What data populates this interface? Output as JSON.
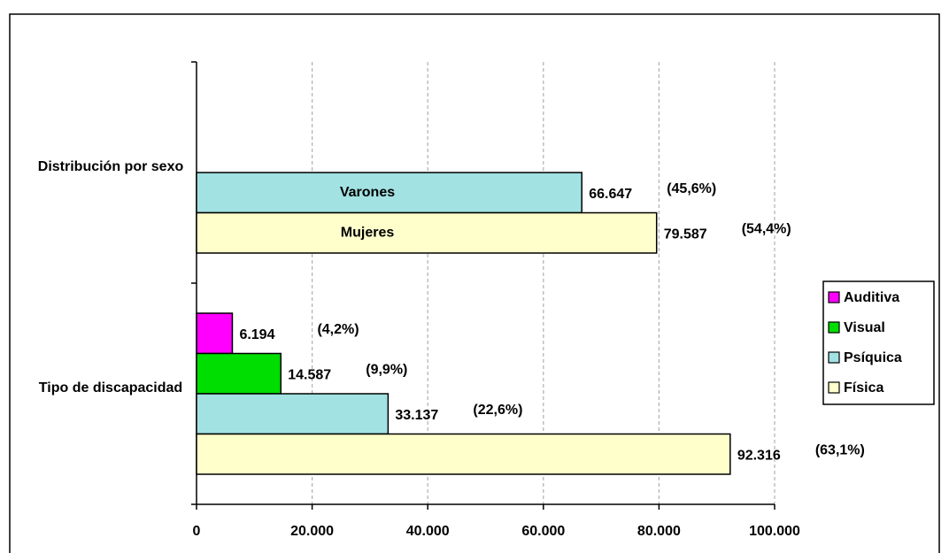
{
  "chart_data": {
    "type": "hbar",
    "categories": [
      "Distribución por sexo",
      "Tipo de discapacidad"
    ],
    "series": [
      {
        "name": "Auditiva",
        "color": "#ff00ff",
        "values": [
          null,
          6194
        ],
        "value_labels": [
          null,
          "6.194"
        ],
        "shares": [
          null,
          4.2
        ],
        "share_labels": [
          null,
          "(4,2%)"
        ],
        "inner_labels": [
          null,
          null
        ]
      },
      {
        "name": "Visual",
        "color": "#00dd00",
        "values": [
          null,
          14587
        ],
        "value_labels": [
          null,
          "14.587"
        ],
        "shares": [
          null,
          9.9
        ],
        "share_labels": [
          null,
          "(9,9%)"
        ],
        "inner_labels": [
          null,
          null
        ]
      },
      {
        "name": "Psíquica",
        "color": "#a3e2e2",
        "values": [
          66647,
          33137
        ],
        "value_labels": [
          "66.647",
          "33.137"
        ],
        "shares": [
          45.6,
          22.6
        ],
        "share_labels": [
          "(45,6%)",
          "(22,6%)"
        ],
        "inner_labels": [
          "Varones",
          null
        ]
      },
      {
        "name": "Física",
        "color": "#ffffcc",
        "values": [
          79587,
          92316
        ],
        "value_labels": [
          "79.587",
          "92.316"
        ],
        "shares": [
          54.4,
          63.1
        ],
        "share_labels": [
          "(54,4%)",
          "(63,1%)"
        ],
        "inner_labels": [
          "Mujeres",
          null
        ]
      }
    ],
    "xlim": [
      0,
      100000
    ],
    "xticks": [
      0,
      {
        "value": 20000,
        "label": "20.000"
      },
      {
        "value": 40000,
        "label": "40.000"
      },
      {
        "value": 60000,
        "label": "60.000"
      },
      {
        "value": 80000,
        "label": "80.000"
      },
      {
        "value": 100000,
        "label": "100.000"
      }
    ],
    "grid": true,
    "legend": "right"
  }
}
